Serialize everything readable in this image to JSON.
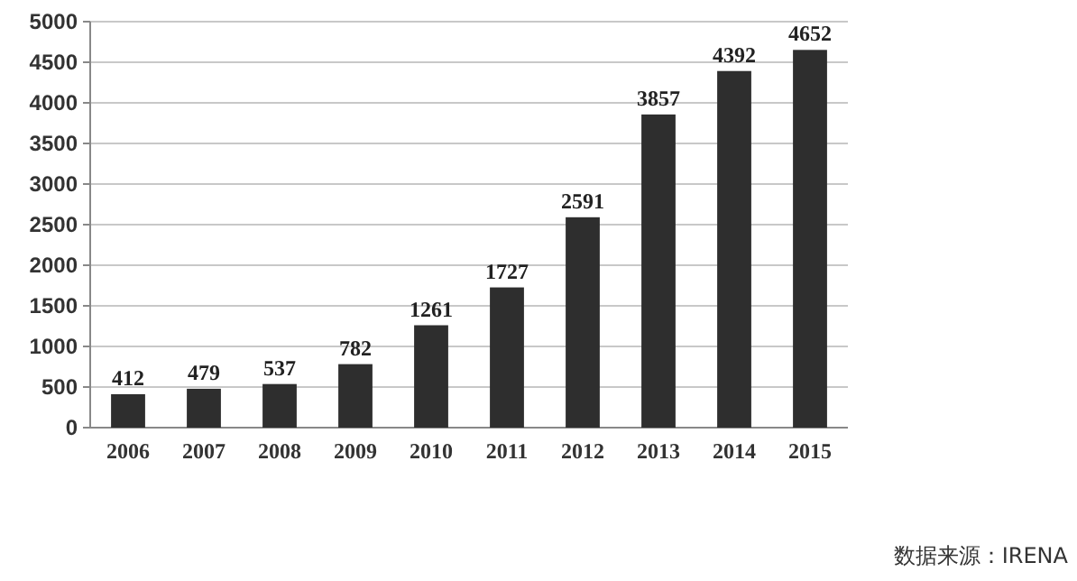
{
  "chart_data": {
    "type": "bar",
    "categories": [
      "2006",
      "2007",
      "2008",
      "2009",
      "2010",
      "2011",
      "2012",
      "2013",
      "2014",
      "2015"
    ],
    "values": [
      412,
      479,
      537,
      782,
      1261,
      1727,
      2591,
      3857,
      4392,
      4652
    ],
    "color": "#2e2e2e",
    "ylim": [
      0,
      5000
    ],
    "yticks": [
      0,
      500,
      1000,
      1500,
      2000,
      2500,
      3000,
      3500,
      4000,
      4500,
      5000
    ],
    "grid": "y",
    "data_labels": true,
    "annotations": [
      "数据来源：IRENA"
    ]
  }
}
